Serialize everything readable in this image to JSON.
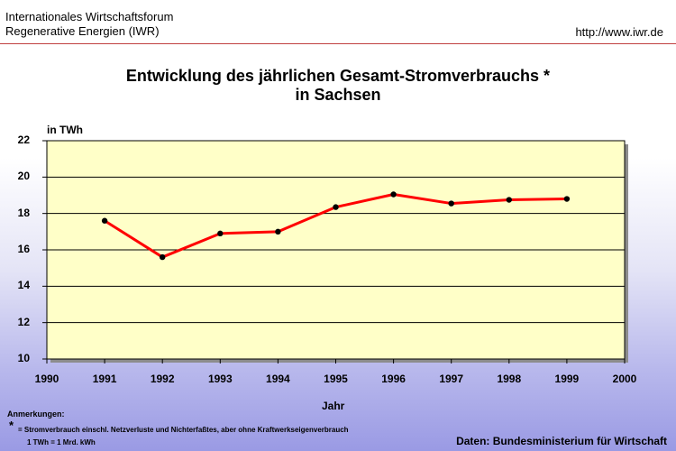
{
  "header": {
    "org_line1": "Internationales Wirtschaftsforum",
    "org_line2": "Regenerative Energien (IWR)",
    "url": "http://www.iwr.de"
  },
  "chart_data": {
    "type": "line",
    "title_line1": "Entwicklung des jährlichen Gesamt-Stromverbrauchs *",
    "title_line2": "in Sachsen",
    "ylabel": "in TWh",
    "xlabel": "Jahr",
    "xlim": [
      1990,
      2000
    ],
    "ylim": [
      10,
      22
    ],
    "x_ticks": [
      "1990",
      "1991",
      "1992",
      "1993",
      "1994",
      "1995",
      "1996",
      "1997",
      "1998",
      "1999",
      "2000"
    ],
    "y_ticks": [
      "10",
      "12",
      "14",
      "16",
      "18",
      "20",
      "22"
    ],
    "grid": true,
    "colors": {
      "line": "#ff0000",
      "marker": "#000000",
      "plot_bg": "#ffffc8"
    },
    "x": [
      1991,
      1992,
      1993,
      1994,
      1995,
      1996,
      1997,
      1998,
      1999
    ],
    "values": [
      17.6,
      15.6,
      16.9,
      17.0,
      18.35,
      19.05,
      18.55,
      18.75,
      18.8
    ]
  },
  "notes": {
    "heading": "Anmerkungen:",
    "star": "*",
    "line1": "= Stromverbrauch einschl. Netzverluste und Nichterfaßtes, aber ohne Kraftwerkseigenverbrauch",
    "line2": "1 TWh = 1 Mrd. kWh"
  },
  "source": "Daten: Bundesministerium für Wirtschaft"
}
